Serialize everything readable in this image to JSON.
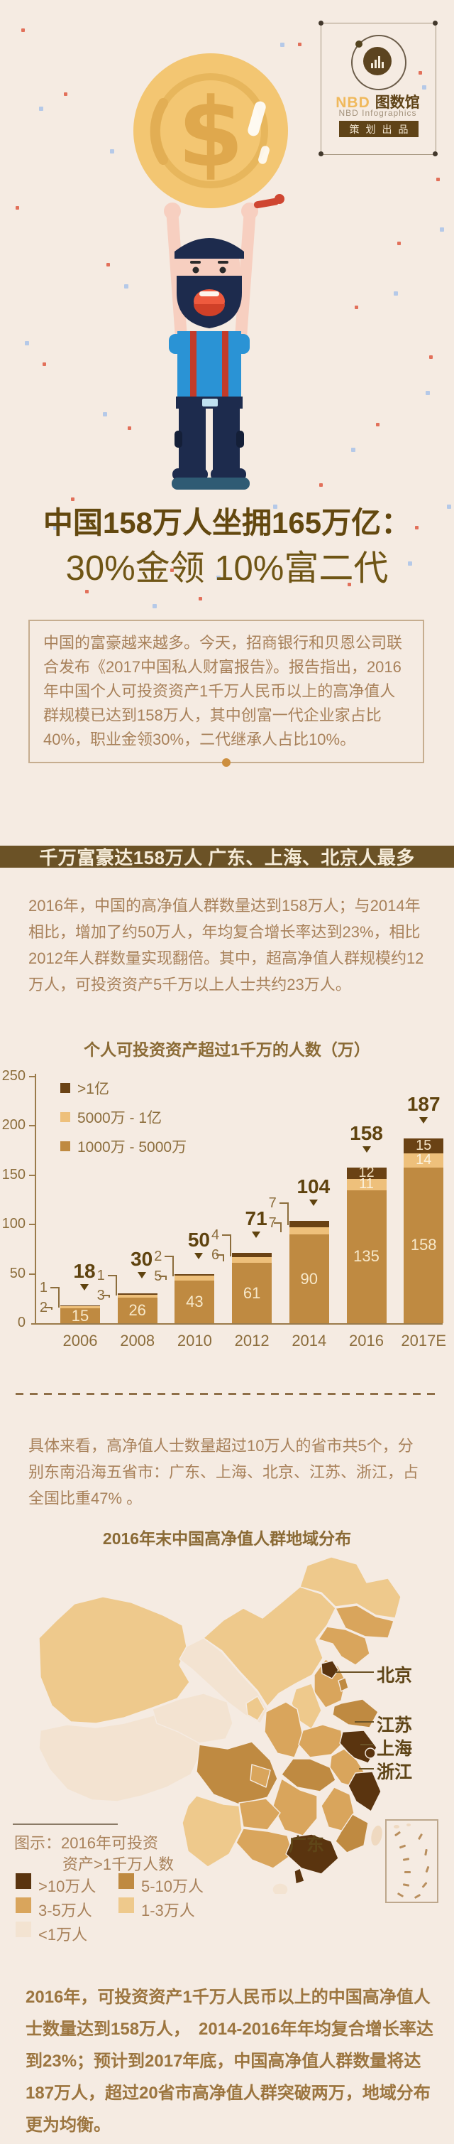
{
  "meta": {
    "title": "中国158万人坐拥165万亿：30%金领 10%富二代"
  },
  "logo": {
    "brand": "NBD",
    "brand_cn": "图数馆",
    "subtitle": "NBD Infographics",
    "badge": "策划出品"
  },
  "hero": {
    "title_line1": "中国158万人坐拥165万亿：",
    "title_line2": "30%金领 10%富二代",
    "intro": "中国的富豪越来越多。今天，招商银行和贝恩公司联合发布《2017中国私人财富报告》。报告指出，2016年中国个人可投资资产1千万人民币以上的高净值人群规模已达到158万人，其中创富一代企业家占比40%，职业金领30%，二代继承人占比10%。"
  },
  "section1": {
    "header": "千万富豪达158万人 广东、上海、北京人最多",
    "body": "2016年，中国的高净值人群数量达到158万人；与2014年相比，增加了约50万人，年均复合增长率达到23%，相比2012年人群数量实现翻倍。其中，超高净值人群规模约12万人，可投资资产5千万以上人士共约23万人。"
  },
  "chart_data": {
    "type": "bar",
    "stacked": true,
    "title": "个人可投资资产超过1千万的人数（万）",
    "categories": [
      "2006",
      "2008",
      "2010",
      "2012",
      "2014",
      "2016",
      "2017E"
    ],
    "series": [
      {
        "name": "1000万 - 5000万",
        "color": "#bf8a41",
        "values": [
          15,
          26,
          43,
          61,
          90,
          135,
          158
        ]
      },
      {
        "name": "5000万 - 1亿",
        "color": "#eec07b",
        "values": [
          2,
          3,
          5,
          6,
          7,
          11,
          14
        ]
      },
      {
        "name": ">1亿",
        "color": "#6a4214",
        "values": [
          1,
          1,
          2,
          4,
          7,
          12,
          15
        ]
      }
    ],
    "totals": [
      18,
      30,
      50,
      71,
      104,
      158,
      187
    ],
    "legend": [
      {
        "label": ">1亿",
        "color": "#6a4214"
      },
      {
        "label": "5000万 - 1亿",
        "color": "#eec07b"
      },
      {
        "label": "1000万 - 5000万",
        "color": "#bf8a41"
      }
    ],
    "xlabel": "",
    "ylabel": "",
    "ylim": [
      0,
      250
    ],
    "yticks": [
      0,
      50,
      100,
      150,
      200,
      250
    ],
    "grid": false,
    "legend_position": "top-left-inside"
  },
  "section2": {
    "lead": "具体来看，高净值人士数量超过10万人的省市共5个，分别东南沿海五省市：广东、上海、北京、江苏、浙江，占全国比重47% 。",
    "map_title": "2016年末中国高净值人群地域分布",
    "map_labels": {
      "beijing": "北京",
      "jiangsu": "江苏",
      "shanghai": "上海",
      "zhejiang": "浙江",
      "guangdong": "广东"
    },
    "legend": {
      "title_line1": "图示：2016年可投资",
      "title_line2": "资产>1千万人数",
      "items": [
        {
          "label": ">10万人",
          "color": "#5a340f"
        },
        {
          "label": "5-10万人",
          "color": "#bf8a41"
        },
        {
          "label": "3-5万人",
          "color": "#d9a55c"
        },
        {
          "label": "1-3万人",
          "color": "#eec98c"
        },
        {
          "label": "<1万人",
          "color": "#f3e3d1"
        }
      ]
    },
    "conclusion": "2016年，可投资资产1千万人民币以上的中国高净值人士数量达到158万人，　2014-2016年年均复合增长率达到23%；预计到2017年底，中国高净值人群数量将达187万人，超过20省市高净值人群突破两万，地域分布更为均衡。"
  }
}
